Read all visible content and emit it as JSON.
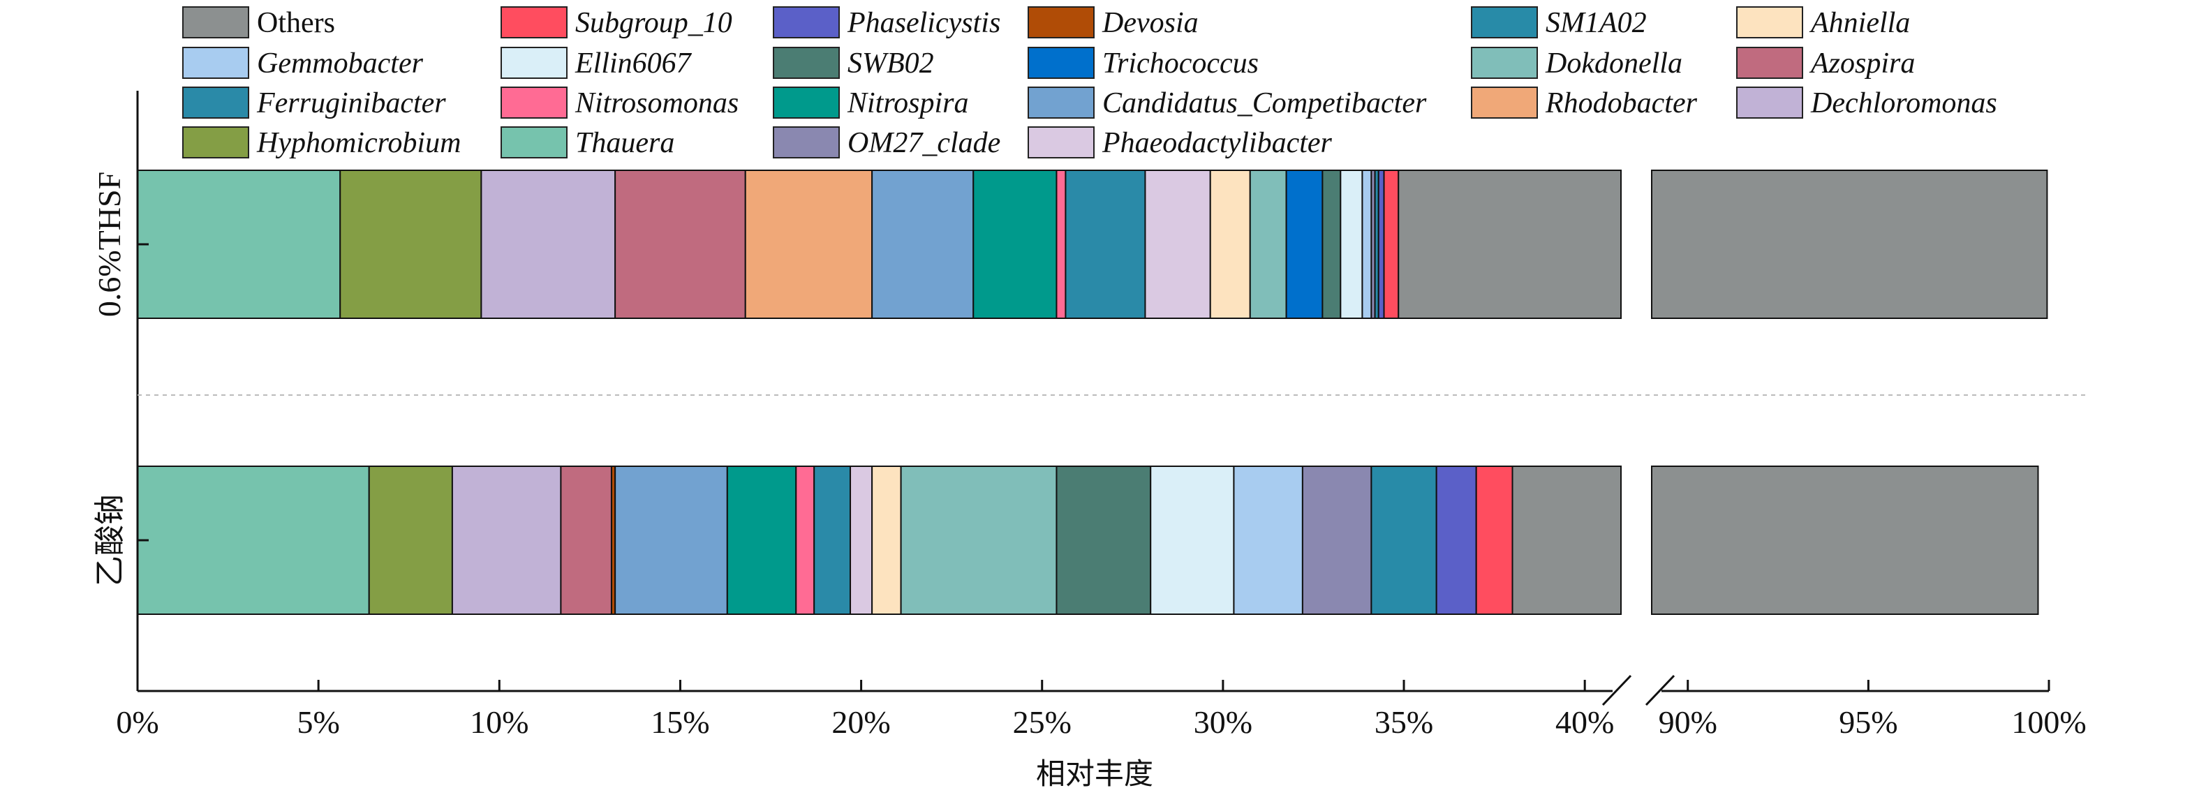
{
  "chart_data": {
    "type": "bar",
    "orientation": "horizontal-stacked",
    "title": "",
    "xlabel": "相对丰度",
    "ylabel": "",
    "x_axis_break": [
      41,
      89
    ],
    "xlim": [
      0,
      100
    ],
    "xticks": [
      "0%",
      "5%",
      "10%",
      "15%",
      "20%",
      "25%",
      "30%",
      "35%",
      "40%",
      "90%",
      "95%",
      "100%"
    ],
    "legend_placement": "top",
    "categories": [
      "0.6%THSF",
      "乙酸钠"
    ],
    "series": [
      {
        "name": "Thauera",
        "color": "#76c3ad",
        "values": [
          5.6,
          6.4
        ]
      },
      {
        "name": "Hyphomicrobium",
        "color": "#849e45",
        "values": [
          3.9,
          2.3
        ]
      },
      {
        "name": "Dechloromonas",
        "color": "#c1b2d6",
        "values": [
          3.7,
          3.0
        ]
      },
      {
        "name": "Azospira",
        "color": "#c06b7f",
        "values": [
          3.6,
          1.4
        ]
      },
      {
        "name": "Devosia",
        "color": "#b04c06",
        "values": [
          0.0,
          0.1
        ]
      },
      {
        "name": "Rhodobacter",
        "color": "#f0a878",
        "values": [
          3.5,
          0.0
        ]
      },
      {
        "name": "Candidatus_Competibacter",
        "color": "#72a2d0",
        "values": [
          2.8,
          3.1
        ]
      },
      {
        "name": "Nitrospira",
        "color": "#009a8c",
        "values": [
          2.3,
          1.9
        ]
      },
      {
        "name": "Nitrosomonas",
        "color": "#ff6b94",
        "values": [
          0.25,
          0.5
        ]
      },
      {
        "name": "Ferruginibacter",
        "color": "#2a8aa8",
        "values": [
          2.2,
          1.0
        ]
      },
      {
        "name": "Phaeodactylibacter",
        "color": "#dac9e2",
        "values": [
          1.8,
          0.6
        ]
      },
      {
        "name": "Ahniella",
        "color": "#fde3bf",
        "values": [
          1.1,
          0.8
        ]
      },
      {
        "name": "Dokdonella",
        "color": "#80beb9",
        "values": [
          1.0,
          4.3
        ]
      },
      {
        "name": "Trichococcus",
        "color": "#0070cc",
        "values": [
          1.0,
          0.0
        ]
      },
      {
        "name": "SWB02",
        "color": "#4b7d73",
        "values": [
          0.5,
          2.6
        ]
      },
      {
        "name": "Ellin6067",
        "color": "#daeff8",
        "values": [
          0.6,
          2.3
        ]
      },
      {
        "name": "Gemmobacter",
        "color": "#a8ccf0",
        "values": [
          0.25,
          1.9
        ]
      },
      {
        "name": "OM27_clade",
        "color": "#8a88b0",
        "values": [
          0.1,
          1.9
        ]
      },
      {
        "name": "SM1A02",
        "color": "#288ba8",
        "values": [
          0.1,
          1.8
        ]
      },
      {
        "name": "Phaselicystis",
        "color": "#5b60c8",
        "values": [
          0.15,
          1.1
        ]
      },
      {
        "name": "Subgroup_10",
        "color": "#ff4d5f",
        "values": [
          0.4,
          1.0
        ]
      },
      {
        "name": "Others",
        "color": "#8c9090",
        "values": [
          65.1,
          61.7
        ]
      }
    ],
    "legend_entries": [
      {
        "label": "Others",
        "color": "#8c9090"
      },
      {
        "label": "Subgroup_10",
        "color": "#ff4d5f"
      },
      {
        "label": "Phaselicystis",
        "color": "#5b60c8"
      },
      {
        "label": "Devosia",
        "color": "#b04c06"
      },
      {
        "label": "SM1A02",
        "color": "#288ba8"
      },
      {
        "label": "Ahniella",
        "color": "#fde3bf"
      },
      {
        "label": "Gemmobacter",
        "color": "#a8ccf0"
      },
      {
        "label": "Ellin6067",
        "color": "#daeff8"
      },
      {
        "label": "SWB02",
        "color": "#4b7d73"
      },
      {
        "label": "Trichococcus",
        "color": "#0070cc"
      },
      {
        "label": "Dokdonella",
        "color": "#80beb9"
      },
      {
        "label": "Azospira",
        "color": "#c06b7f"
      },
      {
        "label": "Ferruginibacter",
        "color": "#2a8aa8"
      },
      {
        "label": "Nitrosomonas",
        "color": "#ff6b94"
      },
      {
        "label": "Nitrospira",
        "color": "#009a8c"
      },
      {
        "label": "Candidatus_Competibacter",
        "color": "#72a2d0"
      },
      {
        "label": "Rhodobacter",
        "color": "#f0a878"
      },
      {
        "label": "Dechloromonas",
        "color": "#c1b2d6"
      },
      {
        "label": "Hyphomicrobium",
        "color": "#849e45"
      },
      {
        "label": "Thauera",
        "color": "#76c3ad"
      },
      {
        "label": "OM27_clade",
        "color": "#8a88b0"
      },
      {
        "label": "Phaeodactylibacter",
        "color": "#dac9e2"
      }
    ]
  }
}
